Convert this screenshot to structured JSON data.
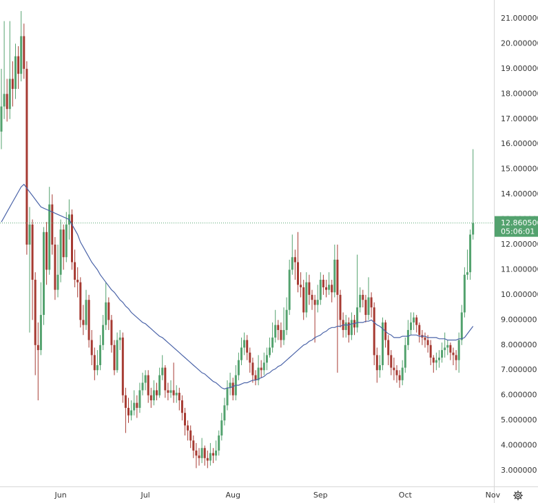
{
  "chart_data": {
    "type": "candlestick",
    "categories": [
      null,
      null,
      null,
      null,
      null,
      null,
      null,
      null,
      null,
      null,
      null,
      null,
      null,
      null,
      null,
      null,
      null,
      null,
      null,
      null,
      null,
      "Jun",
      null,
      null,
      null,
      null,
      null,
      null,
      null,
      null,
      null,
      null,
      null,
      null,
      null,
      null,
      null,
      null,
      null,
      null,
      null,
      null,
      null,
      null,
      null,
      null,
      null,
      null,
      null,
      null,
      null,
      "Jul",
      null,
      null,
      null,
      null,
      null,
      null,
      null,
      null,
      null,
      null,
      null,
      null,
      null,
      null,
      null,
      null,
      null,
      null,
      null,
      null,
      null,
      null,
      null,
      null,
      null,
      null,
      null,
      null,
      null,
      null,
      "Aug",
      null,
      null,
      null,
      null,
      null,
      null,
      null,
      null,
      null,
      null,
      null,
      null,
      null,
      null,
      null,
      null,
      null,
      null,
      null,
      null,
      null,
      null,
      null,
      null,
      null,
      null,
      null,
      null,
      null,
      null,
      "Sep",
      null,
      null,
      null,
      null,
      null,
      null,
      null,
      null,
      null,
      null,
      null,
      null,
      null,
      null,
      null,
      null,
      null,
      null,
      null,
      null,
      null,
      null,
      null,
      null,
      null,
      null,
      null,
      null,
      null,
      "Oct",
      null,
      null,
      null,
      null,
      null,
      null,
      null,
      null,
      null,
      null,
      null,
      null,
      null,
      null,
      null,
      null,
      null,
      null,
      null,
      null,
      null,
      null,
      null,
      null,
      null,
      null,
      null,
      null,
      null,
      null,
      "Nov"
    ],
    "open": [
      16.5,
      17.5,
      18.0,
      17.4,
      18.6,
      18.2,
      19.5,
      18.8,
      20.3,
      19.0,
      12.0,
      12.8,
      10.6,
      8.0,
      7.8,
      9.2,
      12.5,
      11.0,
      13.6,
      12.0,
      10.2,
      10.8,
      12.6,
      11.5,
      12.8,
      13.2,
      11.3,
      10.6,
      10.5,
      9.0,
      8.8,
      9.8,
      8.2,
      7.6,
      7.0,
      7.2,
      8.0,
      8.8,
      9.7,
      9.0,
      8.0,
      7.0,
      8.2,
      8.3,
      6.0,
      5.5,
      5.2,
      5.4,
      5.7,
      5.5,
      6.2,
      6.5,
      6.8,
      6.0,
      5.8,
      6.2,
      6.0,
      6.8,
      7.1,
      6.2,
      6.1,
      6.2,
      6.0,
      6.1,
      5.8,
      5.3,
      4.8,
      4.6,
      4.2,
      3.8,
      3.6,
      3.5,
      3.9,
      3.5,
      3.4,
      3.7,
      3.6,
      3.8,
      4.4,
      5.0,
      5.6,
      6.3,
      6.5,
      6.0,
      6.8,
      7.4,
      7.9,
      8.2,
      7.7,
      7.3,
      6.8,
      6.6,
      7.1,
      7.0,
      7.3,
      7.6,
      7.9,
      8.3,
      8.8,
      8.6,
      8.2,
      8.6,
      9.4,
      11.0,
      11.5,
      11.3,
      10.4,
      10.3,
      9.3,
      10.5,
      10.0,
      9.8,
      9.6,
      9.8,
      10.6,
      10.3,
      10.2,
      10.4,
      10.1,
      11.4,
      10.0,
      9.0,
      8.6,
      8.9,
      8.4,
      9.0,
      8.7,
      9.5,
      10.0,
      9.8,
      9.2,
      9.9,
      9.5,
      7.6,
      7.0,
      7.2,
      8.9,
      8.2,
      7.6,
      7.1,
      7.0,
      6.8,
      6.6,
      7.1,
      8.0,
      8.6,
      8.9,
      9.1,
      8.8,
      8.4,
      8.3,
      8.2,
      8.0,
      7.5,
      7.3,
      7.4,
      7.5,
      7.8,
      7.9,
      8.0,
      7.7,
      7.6,
      7.4,
      8.2,
      9.3,
      10.8,
      10.9,
      12.4,
      null,
      null,
      null,
      null,
      null,
      null,
      null
    ],
    "high": [
      19.0,
      20.9,
      18.6,
      20.9,
      19.3,
      20.0,
      19.9,
      21.3,
      20.8,
      19.3,
      13.5,
      13.0,
      10.9,
      8.9,
      10.5,
      12.7,
      12.9,
      14.3,
      14.0,
      12.3,
      12.0,
      13.0,
      12.8,
      13.3,
      13.8,
      13.4,
      11.8,
      11.1,
      10.7,
      9.6,
      10.2,
      10.0,
      8.6,
      7.9,
      7.8,
      8.4,
      9.2,
      10.5,
      9.9,
      9.2,
      8.2,
      8.5,
      8.6,
      8.5,
      6.3,
      5.9,
      5.8,
      6.2,
      6.0,
      6.5,
      6.9,
      7.0,
      7.0,
      6.3,
      6.6,
      6.5,
      7.1,
      7.6,
      7.2,
      6.5,
      6.6,
      7.3,
      6.4,
      6.3,
      6.0,
      5.5,
      5.0,
      4.8,
      4.4,
      4.1,
      3.9,
      4.3,
      4.0,
      3.8,
      4.1,
      3.9,
      4.2,
      4.6,
      5.3,
      5.9,
      6.6,
      6.9,
      6.7,
      7.2,
      7.7,
      8.3,
      8.5,
      8.4,
      7.9,
      7.5,
      7.0,
      7.6,
      7.4,
      7.7,
      7.9,
      8.3,
      8.9,
      9.4,
      9.0,
      8.9,
      9.5,
      9.9,
      11.4,
      12.4,
      11.8,
      12.5,
      10.9,
      10.6,
      10.9,
      10.8,
      10.2,
      10.0,
      10.4,
      10.9,
      10.8,
      10.6,
      10.9,
      10.6,
      12.0,
      12.0,
      10.2,
      9.3,
      9.2,
      9.1,
      9.3,
      9.2,
      11.6,
      10.3,
      10.2,
      10.0,
      10.7,
      10.1,
      9.7,
      7.9,
      7.6,
      9.1,
      9.0,
      8.4,
      7.8,
      7.5,
      7.2,
      7.0,
      7.4,
      8.3,
      9.0,
      9.3,
      9.3,
      9.2,
      8.9,
      8.6,
      8.5,
      8.4,
      8.2,
      7.6,
      7.7,
      7.8,
      8.1,
      8.5,
      8.2,
      8.1,
      7.9,
      7.8,
      8.5,
      9.6,
      11.1,
      11.8,
      12.6,
      15.8,
      null,
      null,
      null,
      null,
      null,
      null,
      null
    ],
    "low": [
      15.8,
      17.0,
      16.9,
      17.0,
      17.5,
      17.8,
      18.2,
      18.5,
      18.6,
      11.6,
      8.5,
      9.0,
      6.8,
      5.8,
      7.6,
      8.8,
      10.4,
      10.8,
      11.6,
      9.8,
      9.9,
      10.5,
      11.0,
      11.3,
      12.2,
      11.0,
      10.3,
      9.9,
      8.7,
      8.4,
      8.6,
      7.9,
      7.2,
      6.6,
      6.8,
      7.0,
      7.8,
      8.6,
      8.6,
      7.7,
      6.8,
      6.9,
      7.8,
      5.7,
      4.5,
      4.9,
      5.0,
      5.2,
      5.1,
      5.3,
      6.0,
      6.2,
      5.7,
      5.5,
      5.6,
      5.8,
      5.9,
      6.6,
      5.9,
      5.8,
      5.9,
      5.7,
      5.7,
      5.4,
      5.0,
      4.4,
      4.2,
      3.9,
      3.5,
      3.1,
      3.2,
      3.3,
      3.2,
      3.1,
      3.2,
      3.3,
      3.4,
      3.6,
      4.2,
      4.8,
      5.4,
      6.0,
      5.8,
      5.8,
      6.6,
      7.2,
      7.6,
      7.4,
      6.9,
      6.5,
      6.4,
      6.4,
      6.7,
      6.8,
      7.0,
      7.5,
      7.7,
      8.1,
      8.2,
      7.9,
      8.0,
      8.4,
      9.2,
      10.8,
      10.6,
      10.1,
      9.9,
      9.0,
      9.1,
      9.6,
      9.4,
      8.1,
      9.3,
      9.6,
      10.0,
      9.9,
      10.0,
      9.7,
      9.9,
      6.9,
      8.7,
      8.3,
      8.3,
      8.1,
      8.2,
      8.4,
      8.5,
      9.3,
      9.5,
      8.9,
      9.0,
      9.1,
      7.2,
      6.5,
      6.7,
      7.0,
      7.9,
      7.2,
      6.8,
      6.6,
      6.5,
      6.3,
      6.4,
      6.9,
      7.8,
      8.4,
      8.6,
      8.5,
      8.1,
      8.0,
      7.9,
      7.7,
      7.2,
      6.9,
      7.0,
      7.1,
      7.3,
      7.5,
      7.6,
      7.4,
      7.2,
      7.0,
      6.9,
      8.0,
      9.1,
      10.6,
      10.6,
      12.2,
      null,
      null,
      null,
      null,
      null,
      null,
      null
    ],
    "close": [
      17.5,
      18.0,
      17.4,
      18.6,
      18.2,
      19.5,
      18.8,
      20.3,
      19.0,
      12.0,
      12.8,
      10.6,
      8.0,
      7.8,
      9.2,
      12.5,
      11.0,
      13.6,
      12.0,
      10.2,
      10.8,
      12.6,
      11.5,
      12.8,
      13.2,
      11.3,
      10.6,
      10.5,
      9.0,
      8.8,
      9.8,
      8.2,
      7.6,
      7.0,
      7.2,
      8.0,
      8.8,
      9.7,
      9.0,
      8.0,
      7.0,
      8.2,
      8.3,
      6.0,
      5.5,
      5.2,
      5.4,
      5.7,
      5.5,
      6.2,
      6.5,
      6.8,
      6.0,
      5.8,
      6.2,
      6.0,
      6.8,
      7.1,
      6.2,
      6.1,
      6.2,
      6.0,
      6.1,
      5.8,
      5.3,
      4.8,
      4.6,
      4.2,
      3.8,
      3.6,
      3.5,
      3.9,
      3.5,
      3.4,
      3.7,
      3.6,
      3.8,
      4.4,
      5.0,
      5.6,
      6.3,
      6.5,
      6.0,
      6.8,
      7.4,
      7.9,
      8.2,
      7.7,
      7.3,
      6.8,
      6.6,
      7.1,
      7.0,
      7.3,
      7.6,
      7.9,
      8.3,
      8.8,
      8.6,
      8.2,
      8.6,
      9.4,
      11.0,
      11.5,
      11.3,
      10.4,
      10.3,
      9.3,
      10.5,
      10.0,
      9.8,
      9.6,
      9.8,
      10.6,
      10.3,
      10.2,
      10.4,
      10.1,
      11.4,
      10.0,
      9.0,
      8.6,
      8.9,
      8.4,
      9.0,
      8.7,
      9.5,
      10.0,
      9.8,
      9.2,
      9.9,
      9.5,
      7.6,
      7.0,
      7.2,
      8.9,
      8.2,
      7.6,
      7.1,
      7.0,
      6.8,
      6.6,
      7.1,
      8.0,
      8.6,
      8.9,
      9.1,
      8.8,
      8.4,
      8.3,
      8.2,
      8.0,
      7.5,
      7.3,
      7.4,
      7.5,
      7.8,
      7.9,
      8.0,
      7.7,
      7.6,
      7.4,
      8.2,
      9.3,
      10.8,
      10.9,
      12.4,
      12.86,
      null,
      null,
      null,
      null,
      null,
      null,
      null
    ],
    "up_color": "#53a26e",
    "down_color": "#a63a32",
    "ma": {
      "color": "#4a63a8",
      "values": [
        12.9,
        13.1,
        13.3,
        13.5,
        13.7,
        13.9,
        14.1,
        14.3,
        14.4,
        14.25,
        14.1,
        13.95,
        13.8,
        13.65,
        13.5,
        13.45,
        13.4,
        13.35,
        13.3,
        13.25,
        13.2,
        13.15,
        13.1,
        13.05,
        13.0,
        12.8,
        12.6,
        12.4,
        12.1,
        11.9,
        11.7,
        11.5,
        11.3,
        11.15,
        11.0,
        10.8,
        10.65,
        10.5,
        10.35,
        10.2,
        10.1,
        9.95,
        9.8,
        9.7,
        9.55,
        9.45,
        9.3,
        9.2,
        9.1,
        9.0,
        8.9,
        8.85,
        8.75,
        8.65,
        8.55,
        8.45,
        8.35,
        8.3,
        8.2,
        8.1,
        8.0,
        7.9,
        7.8,
        7.7,
        7.6,
        7.5,
        7.4,
        7.3,
        7.2,
        7.1,
        7.0,
        6.9,
        6.85,
        6.75,
        6.65,
        6.55,
        6.5,
        6.4,
        6.3,
        6.25,
        6.3,
        6.3,
        6.35,
        6.4,
        6.4,
        6.45,
        6.5,
        6.5,
        6.55,
        6.6,
        6.6,
        6.65,
        6.7,
        6.75,
        6.85,
        6.9,
        7.0,
        7.05,
        7.15,
        7.2,
        7.3,
        7.4,
        7.5,
        7.6,
        7.7,
        7.8,
        7.9,
        8.0,
        8.05,
        8.15,
        8.2,
        8.3,
        8.35,
        8.4,
        8.5,
        8.55,
        8.65,
        8.7,
        8.7,
        8.75,
        8.75,
        8.8,
        8.8,
        8.8,
        8.85,
        8.85,
        8.9,
        8.9,
        8.9,
        8.95,
        8.95,
        9.0,
        8.9,
        8.8,
        8.75,
        8.65,
        8.55,
        8.45,
        8.4,
        8.3,
        8.3,
        8.3,
        8.35,
        8.35,
        8.35,
        8.4,
        8.4,
        8.4,
        8.35,
        8.35,
        8.35,
        8.3,
        8.3,
        8.3,
        8.3,
        8.25,
        8.25,
        8.25,
        8.2,
        8.2,
        8.2,
        8.2,
        8.25,
        8.25,
        8.3,
        8.45,
        8.6,
        8.75,
        null,
        null,
        null,
        null,
        null,
        null,
        null
      ]
    },
    "last_price": {
      "value": 12.8605,
      "label": "12.860500"
    },
    "countdown": "05:06:01",
    "ylim": [
      2.37,
      21.74
    ],
    "yticks": [
      {
        "value": 3,
        "label": "3.000000"
      },
      {
        "value": 4,
        "label": "4.000000"
      },
      {
        "value": 5,
        "label": "5.000000"
      },
      {
        "value": 6,
        "label": "6.000000"
      },
      {
        "value": 7,
        "label": "7.000000"
      },
      {
        "value": 8,
        "label": "8.000000"
      },
      {
        "value": 9,
        "label": "9.000000"
      },
      {
        "value": 10,
        "label": "10.000000"
      },
      {
        "value": 11,
        "label": "11.000000"
      },
      {
        "value": 12,
        "label": "12.000000"
      },
      {
        "value": 13,
        "label": "13.000000"
      },
      {
        "value": 14,
        "label": "14.000000"
      },
      {
        "value": 15,
        "label": "15.000000"
      },
      {
        "value": 16,
        "label": "16.000000"
      },
      {
        "value": 17,
        "label": "17.000000"
      },
      {
        "value": 18,
        "label": "18.000000"
      },
      {
        "value": 19,
        "label": "19.000000"
      },
      {
        "value": 20,
        "label": "20.000000"
      },
      {
        "value": 21,
        "label": "21.000000"
      }
    ]
  }
}
